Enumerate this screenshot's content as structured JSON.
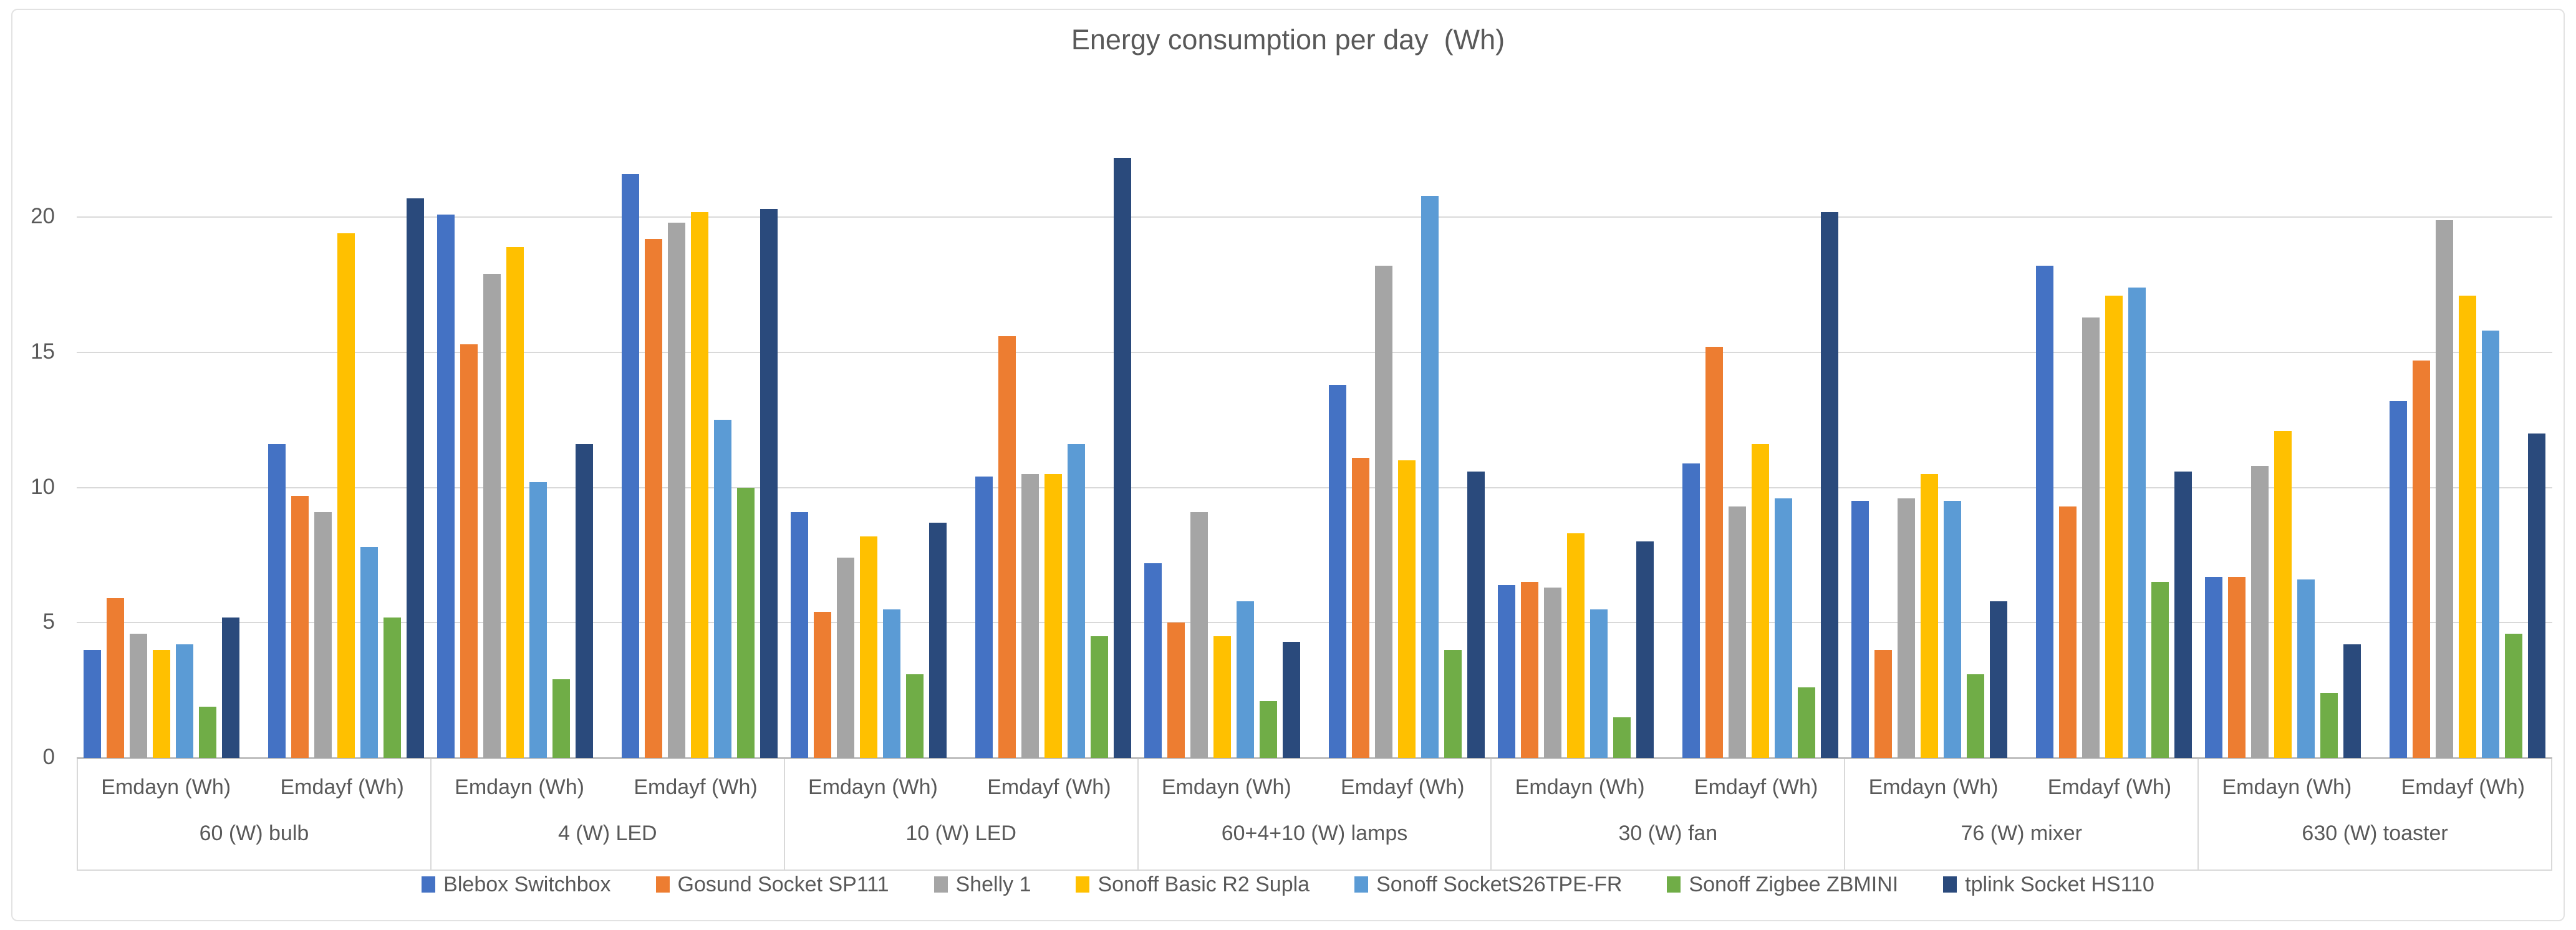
{
  "title": "Energy consumption per day  (Wh)",
  "y_axis": {
    "ticks": [
      0,
      5,
      10,
      15,
      20
    ],
    "max": 22.5
  },
  "chart_data": {
    "type": "bar",
    "title": "Energy consumption per day  (Wh)",
    "xlabel": "",
    "ylabel": "",
    "ylim": [
      0,
      22.5
    ],
    "grid": true,
    "legend_position": "bottom",
    "categories": [
      "60 (W) bulb",
      "4 (W) LED",
      "10 (W) LED",
      "60+4+10 (W) lamps",
      "30 (W) fan",
      "76 (W) mixer",
      "630 (W) toaster"
    ],
    "sub_categories": [
      "Emdayn (Wh)",
      "Emdayf (Wh)"
    ],
    "series": [
      {
        "name": "Blebox Switchbox",
        "color": "#4472C4",
        "values": [
          [
            4.0,
            11.6
          ],
          [
            20.1,
            21.6
          ],
          [
            9.1,
            10.4
          ],
          [
            7.2,
            13.8
          ],
          [
            6.4,
            10.9
          ],
          [
            9.5,
            18.2
          ],
          [
            6.7,
            13.2
          ]
        ]
      },
      {
        "name": "Gosund Socket SP111",
        "color": "#ED7D31",
        "values": [
          [
            5.9,
            9.7
          ],
          [
            15.3,
            19.2
          ],
          [
            5.4,
            15.6
          ],
          [
            5.0,
            11.1
          ],
          [
            6.5,
            15.2
          ],
          [
            4.0,
            9.3
          ],
          [
            6.7,
            14.7
          ]
        ]
      },
      {
        "name": "Shelly 1",
        "color": "#A5A5A5",
        "values": [
          [
            4.6,
            9.1
          ],
          [
            17.9,
            19.8
          ],
          [
            7.4,
            10.5
          ],
          [
            9.1,
            18.2
          ],
          [
            6.3,
            9.3
          ],
          [
            9.6,
            16.3
          ],
          [
            10.8,
            19.9
          ]
        ]
      },
      {
        "name": "Sonoff Basic R2 Supla",
        "color": "#FFC000",
        "values": [
          [
            4.0,
            19.4
          ],
          [
            18.9,
            20.2
          ],
          [
            8.2,
            10.5
          ],
          [
            4.5,
            11.0
          ],
          [
            8.3,
            11.6
          ],
          [
            10.5,
            17.1
          ],
          [
            12.1,
            17.1
          ]
        ]
      },
      {
        "name": "Sonoff SocketS26TPE-FR",
        "color": "#5B9BD5",
        "values": [
          [
            4.2,
            7.8
          ],
          [
            10.2,
            12.5
          ],
          [
            5.5,
            11.6
          ],
          [
            5.8,
            20.8
          ],
          [
            5.5,
            9.6
          ],
          [
            9.5,
            17.4
          ],
          [
            6.6,
            15.8
          ]
        ]
      },
      {
        "name": "Sonoff Zigbee ZBMINI",
        "color": "#70AD47",
        "values": [
          [
            1.9,
            5.2
          ],
          [
            2.9,
            10.0
          ],
          [
            3.1,
            4.5
          ],
          [
            2.1,
            4.0
          ],
          [
            1.5,
            2.6
          ],
          [
            3.1,
            6.5
          ],
          [
            2.4,
            4.6
          ]
        ]
      },
      {
        "name": "tplink Socket HS110",
        "color": "#2A4A7C",
        "values": [
          [
            5.2,
            20.7
          ],
          [
            11.6,
            20.3
          ],
          [
            8.7,
            22.2
          ],
          [
            4.3,
            10.6
          ],
          [
            8.0,
            20.2
          ],
          [
            5.8,
            10.6
          ],
          [
            4.2,
            12.0
          ]
        ]
      }
    ]
  },
  "colors": {
    "text": "#595959",
    "gridline": "#D9D9D9",
    "axis_line": "#BFBFBF",
    "frame_border": "#E2E2E2"
  }
}
